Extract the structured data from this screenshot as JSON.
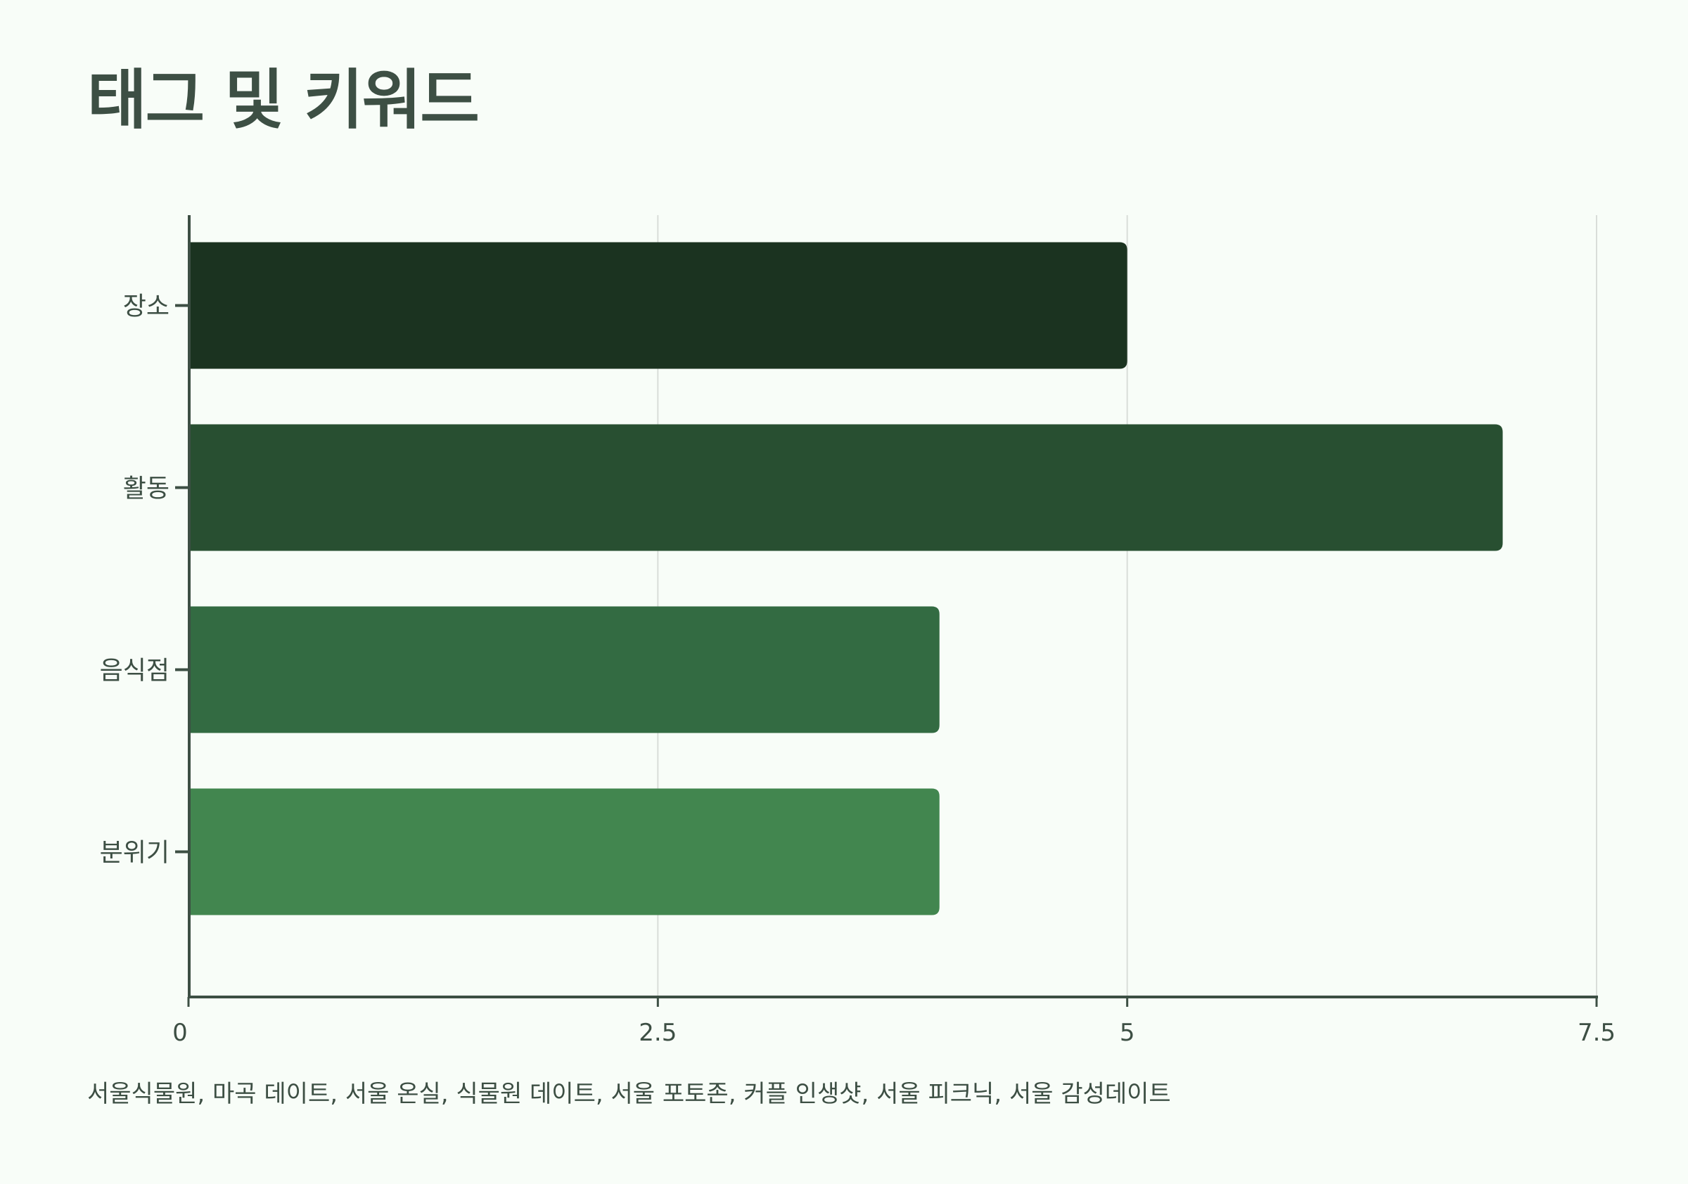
{
  "page": {
    "title": "태그 및 키워드",
    "keywords_text": "서울식물원, 마곡 데이트, 서울 온실, 식물원 데이트, 서울 포토존, 커플 인생샷, 서울 피크닉, 서울 감성데이트"
  },
  "chart_data": {
    "type": "bar",
    "orientation": "horizontal",
    "title": "",
    "xlabel": "",
    "ylabel": "",
    "categories": [
      "장소",
      "활동",
      "음식점",
      "분위기"
    ],
    "values": [
      5,
      7,
      4,
      4
    ],
    "xlim": [
      0,
      7.5
    ],
    "xticks": [
      0,
      2.5,
      5,
      7.5
    ],
    "xtick_labels": [
      "0",
      "2.5",
      "5",
      "7.5"
    ],
    "grid": true,
    "legend": "none",
    "colors": [
      "#1b3320",
      "#284f31",
      "#336b42",
      "#42864f"
    ],
    "axis_color": "#3d4f44",
    "grid_color": "#d9ddd9"
  }
}
